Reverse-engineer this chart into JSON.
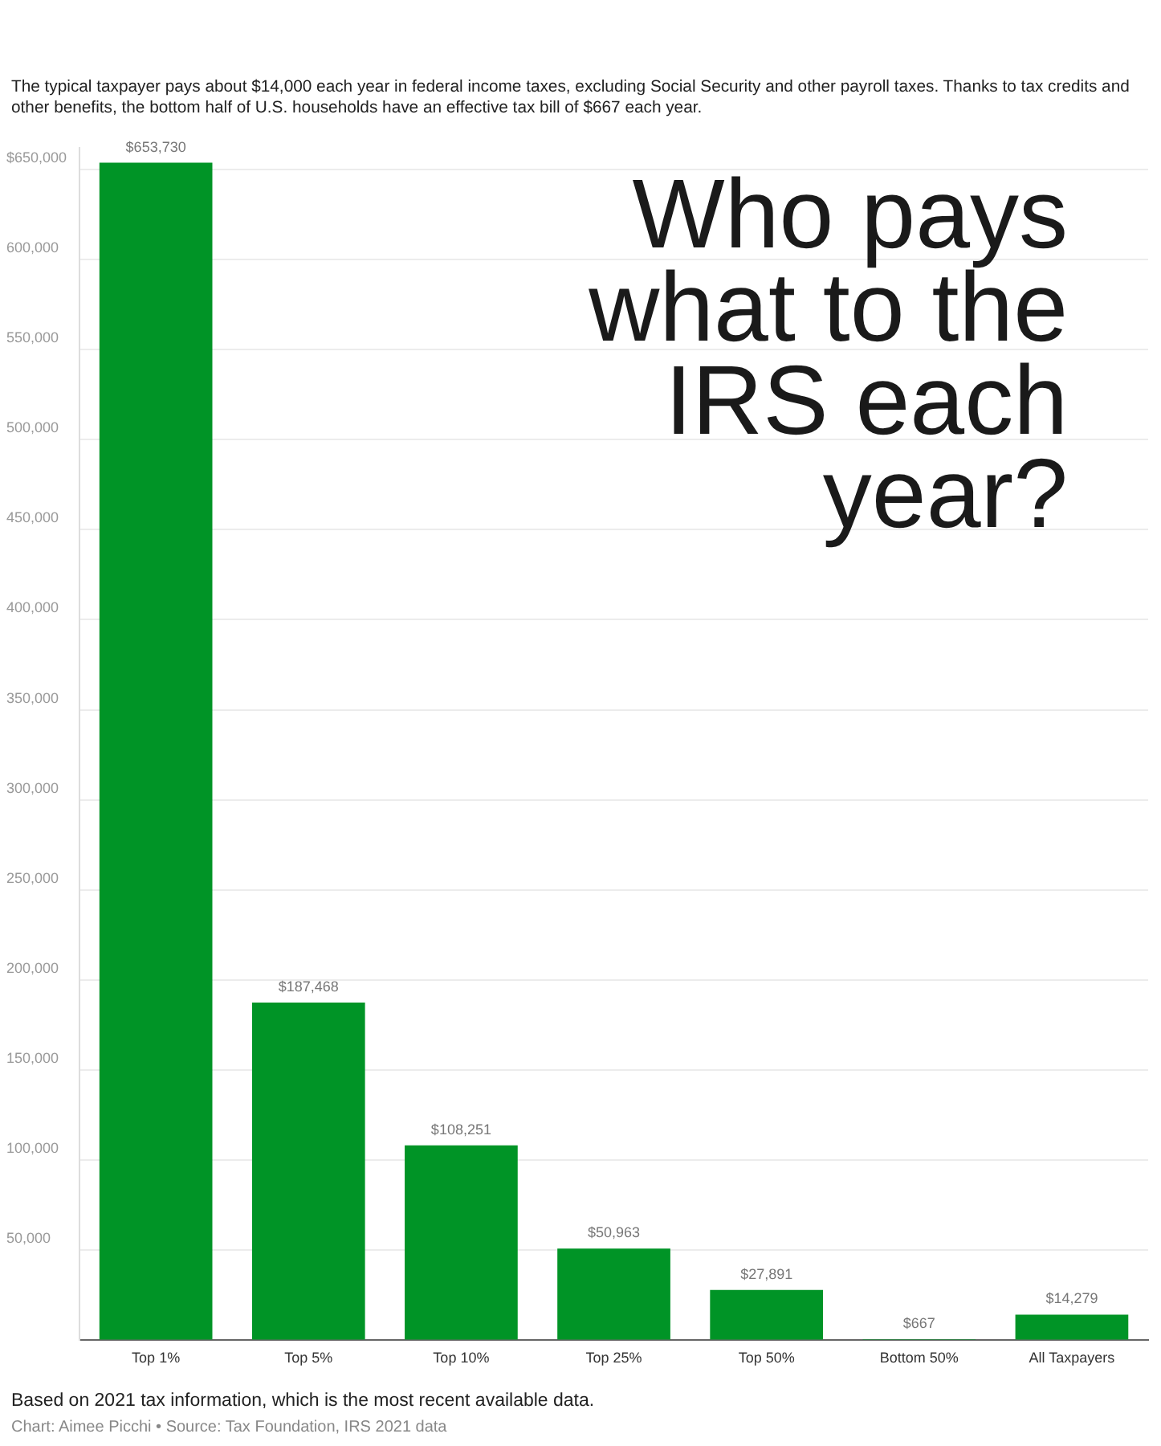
{
  "chart_data": {
    "type": "bar",
    "title": "Who pays what to the IRS each year?",
    "subtitle": "The typical taxpayer pays about $14,000 each year in federal income taxes, excluding Social Security and other payroll taxes. Thanks to tax credits and other benefits, the bottom half of U.S. households have an effective tax bill of $667 each year.",
    "categories": [
      "Top 1%",
      "Top 5%",
      "Top 10%",
      "Top 25%",
      "Top 50%",
      "Bottom 50%",
      "All Taxpayers"
    ],
    "values": [
      653730,
      187468,
      108251,
      50963,
      27891,
      667,
      14279
    ],
    "value_labels": [
      "$653,730",
      "$187,468",
      "$108,251",
      "$50,963",
      "$27,891",
      "$667",
      "$14,279"
    ],
    "color": "#009426",
    "ylim": [
      0,
      662000
    ],
    "yticks": [
      {
        "value": 0,
        "label": null
      },
      {
        "value": 50000,
        "label": "50,000"
      },
      {
        "value": 100000,
        "label": "100,000"
      },
      {
        "value": 150000,
        "label": "150,000"
      },
      {
        "value": 200000,
        "label": "200,000"
      },
      {
        "value": 250000,
        "label": "250,000"
      },
      {
        "value": 300000,
        "label": "300,000"
      },
      {
        "value": 350000,
        "label": "350,000"
      },
      {
        "value": 400000,
        "label": "400,000"
      },
      {
        "value": 450000,
        "label": "450,000"
      },
      {
        "value": 500000,
        "label": "500,000"
      },
      {
        "value": 550000,
        "label": "550,000"
      },
      {
        "value": 600000,
        "label": "600,000"
      },
      {
        "value": 650000,
        "label": "$650,000"
      }
    ],
    "grid": "y",
    "annotations": [
      "Based on 2021 tax information, which is the most recent available data.",
      "Chart: Aimee Picchi • Source: Tax Foundation, IRS 2021 data"
    ]
  }
}
